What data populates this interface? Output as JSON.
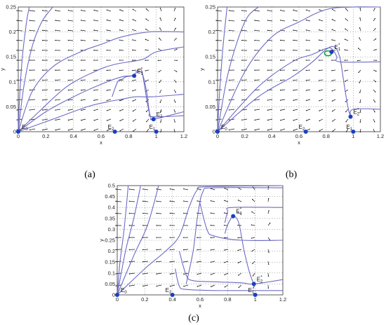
{
  "chart_data": [
    {
      "type": "line",
      "panel_label": "(a)",
      "xlabel": "x",
      "ylabel": "y",
      "xlim": [
        0,
        1.2
      ],
      "ylim": [
        0,
        0.25
      ],
      "xticks": [
        "0",
        "0.2",
        "0.4",
        "0.6",
        "0.8",
        "1",
        "1.2"
      ],
      "yticks": [
        "0",
        "0.05",
        "0.1",
        "0.15",
        "0.2",
        "0.25"
      ],
      "grid": "dotted",
      "equilibria": [
        {
          "name": "E",
          "sub": "0",
          "sup": "",
          "x": 0,
          "y": 0
        },
        {
          "name": "E",
          "sub": "2",
          "sup": "",
          "x": 0.7,
          "y": 0
        },
        {
          "name": "E",
          "sub": "1",
          "sup": "",
          "x": 1.0,
          "y": 0
        },
        {
          "name": "E",
          "sub": "1",
          "sup": "*",
          "x": 0.84,
          "y": 0.112
        },
        {
          "name": "E",
          "sub": "2",
          "sup": "*",
          "x": 0.98,
          "y": 0.025
        }
      ],
      "trajectories": [
        [
          [
            0,
            0
          ],
          [
            0.01,
            0.07
          ],
          [
            0.03,
            0.15
          ],
          [
            0.06,
            0.22
          ],
          [
            0.08,
            0.25
          ]
        ],
        [
          [
            0,
            0
          ],
          [
            0.04,
            0.09
          ],
          [
            0.1,
            0.17
          ],
          [
            0.17,
            0.22
          ],
          [
            0.25,
            0.25
          ]
        ],
        [
          [
            0,
            0
          ],
          [
            0.1,
            0.08
          ],
          [
            0.25,
            0.13
          ],
          [
            0.45,
            0.16
          ],
          [
            0.6,
            0.175
          ],
          [
            0.75,
            0.19
          ],
          [
            0.95,
            0.2
          ],
          [
            1.2,
            0.2
          ]
        ],
        [
          [
            0,
            0
          ],
          [
            0.15,
            0.04
          ],
          [
            0.35,
            0.09
          ],
          [
            0.55,
            0.12
          ],
          [
            0.7,
            0.135
          ],
          [
            0.9,
            0.145
          ],
          [
            1.0,
            0.16
          ],
          [
            1.2,
            0.17
          ]
        ],
        [
          [
            0,
            0
          ],
          [
            0.2,
            0.04
          ],
          [
            0.4,
            0.07
          ],
          [
            0.6,
            0.095
          ],
          [
            0.75,
            0.11
          ],
          [
            0.84,
            0.112
          ]
        ],
        [
          [
            0,
            0
          ],
          [
            0.25,
            0.025
          ],
          [
            0.5,
            0.05
          ],
          [
            0.65,
            0.06
          ],
          [
            0.75,
            0.065
          ],
          [
            0.85,
            0.07
          ],
          [
            0.97,
            0.07
          ],
          [
            1.2,
            0.075
          ]
        ],
        [
          [
            0.68,
            0.07
          ],
          [
            0.72,
            0.1
          ],
          [
            0.75,
            0.105
          ],
          [
            0.78,
            0.11
          ],
          [
            0.82,
            0.112
          ],
          [
            0.87,
            0.12
          ],
          [
            0.9,
            0.115
          ],
          [
            0.93,
            0.08
          ],
          [
            0.95,
            0.04
          ],
          [
            0.97,
            0.03
          ],
          [
            1.2,
            0.032
          ]
        ],
        [
          [
            0.85,
            0.12
          ],
          [
            0.89,
            0.125
          ],
          [
            0.91,
            0.1
          ],
          [
            0.94,
            0.05
          ],
          [
            0.96,
            0.03
          ],
          [
            0.98,
            0.025
          ],
          [
            1.2,
            0.04
          ]
        ]
      ]
    },
    {
      "type": "line",
      "panel_label": "(b)",
      "xlabel": "x",
      "ylabel": "y",
      "xlim": [
        0,
        1.2
      ],
      "ylim": [
        0,
        0.25
      ],
      "xticks": [
        "0",
        "0.2",
        "0.4",
        "0.6",
        "0.8",
        "1",
        "1.2"
      ],
      "yticks": [
        "0",
        "0.05",
        "0.1",
        "0.15",
        "0.2",
        "0.25"
      ],
      "grid": "dotted",
      "equilibria": [
        {
          "name": "E",
          "sub": "0",
          "sup": "",
          "x": 0,
          "y": 0
        },
        {
          "name": "E",
          "sub": "2",
          "sup": "",
          "x": 0.65,
          "y": 0
        },
        {
          "name": "E",
          "sub": "1",
          "sup": "",
          "x": 1.0,
          "y": 0
        },
        {
          "name": "E",
          "sub": "1",
          "sup": "*",
          "x": 0.84,
          "y": 0.16
        },
        {
          "name": "E",
          "sub": "2",
          "sup": "*",
          "x": 0.98,
          "y": 0.03
        }
      ],
      "limit_cycle": {
        "x": 0.84,
        "y": 0.16
      },
      "trajectories": [
        [
          [
            0,
            0
          ],
          [
            0.015,
            0.08
          ],
          [
            0.04,
            0.17
          ],
          [
            0.07,
            0.25
          ]
        ],
        [
          [
            0,
            0
          ],
          [
            0.08,
            0.12
          ],
          [
            0.2,
            0.22
          ],
          [
            0.3,
            0.25
          ]
        ],
        [
          [
            0,
            0
          ],
          [
            0.2,
            0.12
          ],
          [
            0.4,
            0.19
          ],
          [
            0.6,
            0.22
          ],
          [
            0.8,
            0.245
          ],
          [
            1.0,
            0.25
          ],
          [
            1.2,
            0.25
          ]
        ],
        [
          [
            0,
            0
          ],
          [
            0.3,
            0.09
          ],
          [
            0.55,
            0.14
          ],
          [
            0.7,
            0.155
          ],
          [
            0.78,
            0.165
          ],
          [
            0.83,
            0.168
          ],
          [
            0.86,
            0.16
          ],
          [
            0.88,
            0.15
          ],
          [
            0.9,
            0.14
          ],
          [
            1.2,
            0.14
          ]
        ],
        [
          [
            0,
            0
          ],
          [
            0.3,
            0.07
          ],
          [
            0.55,
            0.11
          ],
          [
            0.7,
            0.14
          ],
          [
            0.8,
            0.165
          ],
          [
            0.86,
            0.17
          ],
          [
            0.9,
            0.15
          ],
          [
            0.93,
            0.1
          ],
          [
            0.96,
            0.05
          ],
          [
            0.98,
            0.03
          ]
        ],
        [
          [
            0.98,
            0.03
          ],
          [
            1.0,
            0.045
          ],
          [
            1.2,
            0.045
          ]
        ]
      ]
    },
    {
      "type": "line",
      "panel_label": "(c)",
      "xlabel": "x",
      "ylabel": "y",
      "xlim": [
        0,
        1.2
      ],
      "ylim": [
        0,
        0.5
      ],
      "xticks": [
        "0",
        "0.2",
        "0.4",
        "0.6",
        "0.8",
        "1",
        "1.2"
      ],
      "yticks": [
        "0",
        "0.05",
        "0.1",
        "0.15",
        "0.2",
        "0.25",
        "0.3",
        "0.35",
        "0.4",
        "0.45",
        "0.5"
      ],
      "grid": "dotted",
      "equilibria": [
        {
          "name": "E",
          "sub": "0",
          "sup": "",
          "x": 0,
          "y": 0
        },
        {
          "name": "E",
          "sub": "2",
          "sup": "",
          "x": 0.4,
          "y": 0
        },
        {
          "name": "E",
          "sub": "1",
          "sup": "",
          "x": 1.0,
          "y": 0
        },
        {
          "name": "E",
          "sub": "1",
          "sup": "*",
          "x": 0.84,
          "y": 0.36
        },
        {
          "name": "E",
          "sub": "2",
          "sup": "*",
          "x": 0.99,
          "y": 0.05
        }
      ],
      "trajectories": [
        [
          [
            0,
            0
          ],
          [
            0.02,
            0.15
          ],
          [
            0.05,
            0.3
          ],
          [
            0.08,
            0.5
          ]
        ],
        [
          [
            0,
            0
          ],
          [
            0.06,
            0.2
          ],
          [
            0.12,
            0.35
          ],
          [
            0.17,
            0.5
          ]
        ],
        [
          [
            0,
            0
          ],
          [
            0.12,
            0.18
          ],
          [
            0.22,
            0.32
          ],
          [
            0.3,
            0.5
          ]
        ],
        [
          [
            0,
            0
          ],
          [
            0.2,
            0.12
          ],
          [
            0.35,
            0.2
          ],
          [
            0.45,
            0.27
          ],
          [
            0.52,
            0.4
          ],
          [
            0.58,
            0.48
          ],
          [
            0.65,
            0.495
          ],
          [
            1.2,
            0.5
          ]
        ],
        [
          [
            0.5,
            0.05
          ],
          [
            0.55,
            0.2
          ],
          [
            0.58,
            0.35
          ],
          [
            0.62,
            0.47
          ],
          [
            0.7,
            0.49
          ],
          [
            1.2,
            0.49
          ]
        ],
        [
          [
            0.6,
            0.42
          ],
          [
            0.65,
            0.3
          ],
          [
            0.7,
            0.27
          ],
          [
            0.9,
            0.25
          ],
          [
            1.2,
            0.25
          ]
        ],
        [
          [
            0.78,
            0.33
          ],
          [
            0.8,
            0.38
          ],
          [
            0.83,
            0.4
          ],
          [
            1.2,
            0.4
          ]
        ],
        [
          [
            0.78,
            0.28
          ],
          [
            0.8,
            0.32
          ],
          [
            0.84,
            0.36
          ],
          [
            0.88,
            0.33
          ],
          [
            0.92,
            0.2
          ],
          [
            0.96,
            0.1
          ],
          [
            0.99,
            0.05
          ]
        ],
        [
          [
            0.45,
            0.2
          ],
          [
            0.5,
            0.09
          ],
          [
            0.55,
            0.065
          ],
          [
            0.7,
            0.06
          ],
          [
            0.9,
            0.055
          ],
          [
            0.99,
            0.05
          ],
          [
            1.2,
            0.07
          ]
        ],
        [
          [
            0.42,
            0.12
          ],
          [
            0.45,
            0.04
          ],
          [
            0.5,
            0.025
          ],
          [
            0.7,
            0.02
          ],
          [
            0.9,
            0.02
          ],
          [
            1.2,
            0.02
          ]
        ]
      ]
    }
  ]
}
